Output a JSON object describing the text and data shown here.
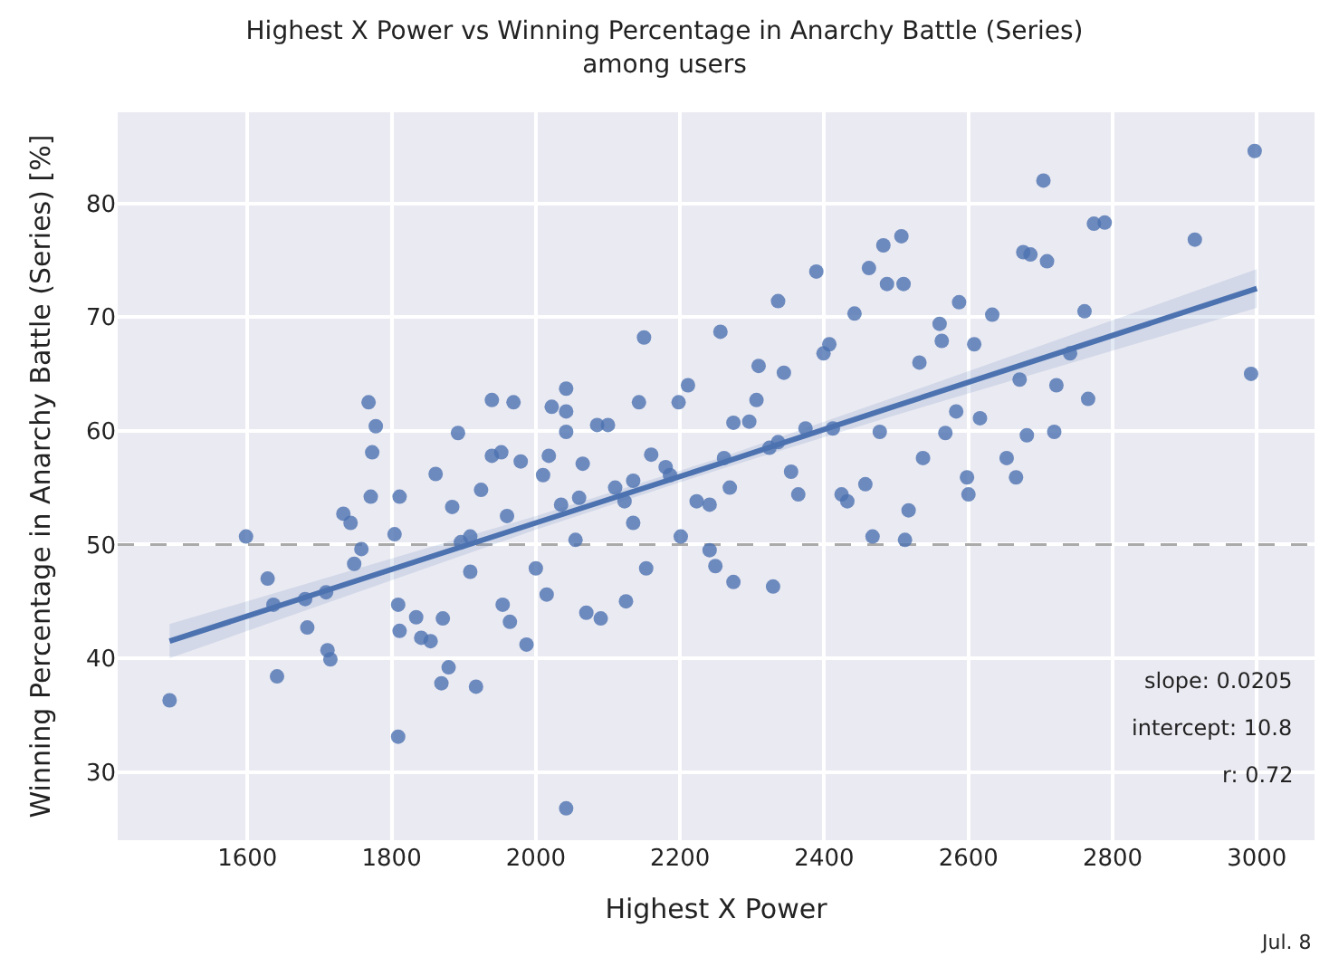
{
  "chart_data": {
    "type": "scatter",
    "title": "Highest X Power vs Winning Percentage in Anarchy Battle (Series)",
    "subtitle": "among users",
    "xlabel": "Highest X Power",
    "ylabel": "Winning Percentage in Anarchy Battle (Series) [%]",
    "xlim": [
      1420,
      3080
    ],
    "xticks": [
      1600,
      1800,
      2000,
      2200,
      2400,
      2600,
      2800,
      3000
    ],
    "ylim": [
      24,
      88
    ],
    "yticks": [
      30,
      40,
      50,
      60,
      70,
      80
    ],
    "grid": true,
    "series": [
      {
        "marker": "circle",
        "color": "#4c72b0",
        "x": [
          1492,
          1598,
          1628,
          1636,
          1641,
          1680,
          1683,
          1709,
          1711,
          1715,
          1733,
          1743,
          1748,
          1758,
          1771,
          1773,
          1768,
          1778,
          1809,
          1809,
          1811,
          1811,
          1804,
          1834,
          1841,
          1854,
          1869,
          1879,
          1871,
          1861,
          1884,
          1892,
          1917,
          1896,
          1909,
          1924,
          1939,
          1939,
          1952,
          1954,
          1964,
          1969,
          1979,
          1987,
          2000,
          2010,
          2018,
          2022,
          2015,
          2042,
          2042,
          2042,
          2042,
          2055,
          2065,
          2070,
          2090,
          2085,
          2100,
          2123,
          2135,
          2143,
          2150,
          2160,
          2125,
          2153,
          2180,
          2198,
          2211,
          2223,
          2241,
          2256,
          2269,
          2274,
          2274,
          2296,
          2306,
          2309,
          2324,
          2329,
          2336,
          2344,
          2354,
          2364,
          2374,
          2389,
          2399,
          2407,
          2424,
          2432,
          2442,
          2457,
          2462,
          2477,
          2482,
          2487,
          2507,
          2510,
          2517,
          2532,
          2537,
          2560,
          2563,
          2568,
          2583,
          2587,
          2598,
          2600,
          2608,
          2616,
          2633,
          2653,
          2666,
          2671,
          2681,
          2676,
          2686,
          2704,
          2709,
          2719,
          2722,
          2741,
          2761,
          2766,
          2774,
          2789,
          2914,
          2997,
          2992,
          2201,
          2241,
          2249,
          2512,
          2467,
          1909,
          1960,
          2035,
          2110,
          2186,
          2261,
          2336,
          2412,
          2135,
          2060
        ],
        "values": [
          36.3,
          50.7,
          47.0,
          44.7,
          38.4,
          45.2,
          42.7,
          45.8,
          40.7,
          39.9,
          52.7,
          51.9,
          48.3,
          49.6,
          54.2,
          58.1,
          62.5,
          60.4,
          44.7,
          33.1,
          42.4,
          54.2,
          50.9,
          43.6,
          41.8,
          41.5,
          37.8,
          39.2,
          43.5,
          56.2,
          53.3,
          59.8,
          37.5,
          50.2,
          47.6,
          54.8,
          62.7,
          57.8,
          58.1,
          44.7,
          43.2,
          62.5,
          57.3,
          41.2,
          47.9,
          56.1,
          57.8,
          62.1,
          45.6,
          63.7,
          26.8,
          61.7,
          59.9,
          50.4,
          57.1,
          44.0,
          43.5,
          60.5,
          60.5,
          53.8,
          51.9,
          62.5,
          68.2,
          57.9,
          45.0,
          47.9,
          56.8,
          62.5,
          64.0,
          53.8,
          53.5,
          68.7,
          55.0,
          46.7,
          60.7,
          60.8,
          62.7,
          65.7,
          58.5,
          46.3,
          71.4,
          65.1,
          56.4,
          54.4,
          60.2,
          74.0,
          66.8,
          67.6,
          54.4,
          53.8,
          70.3,
          55.3,
          74.3,
          59.9,
          76.3,
          72.9,
          77.1,
          72.9,
          53.0,
          66.0,
          57.6,
          69.4,
          67.9,
          59.8,
          61.7,
          71.3,
          55.9,
          54.4,
          67.6,
          61.1,
          70.2,
          57.6,
          55.9,
          64.5,
          59.6,
          75.7,
          75.5,
          82.0,
          74.9,
          59.9,
          64.0,
          66.8,
          70.5,
          62.8,
          78.2,
          78.3,
          76.8,
          84.6,
          65.0,
          50.7,
          49.5,
          48.1,
          50.4,
          50.7,
          50.7,
          52.5,
          53.5,
          55.0,
          56.1,
          57.6,
          59.0,
          60.2,
          55.6,
          54.1
        ]
      },
      {
        "type": "line",
        "color": "#4c72b0",
        "x": [
          1492,
          2000,
          2250,
          2500,
          3000
        ],
        "values": [
          41.5,
          51.9,
          57.0,
          62.2,
          72.5
        ],
        "lower": [
          40.0,
          51.3,
          56.5,
          61.4,
          70.8
        ],
        "upper": [
          43.0,
          52.5,
          57.5,
          63.0,
          74.2
        ]
      }
    ],
    "ref_lines": [
      {
        "axis": "y",
        "value": 50,
        "color": "#aaaaaa",
        "line_style": "dashed"
      }
    ],
    "annotations": [
      "slope: 0.0205",
      "intercept: 10.8",
      "r: 0.72",
      "Jul. 8"
    ]
  }
}
